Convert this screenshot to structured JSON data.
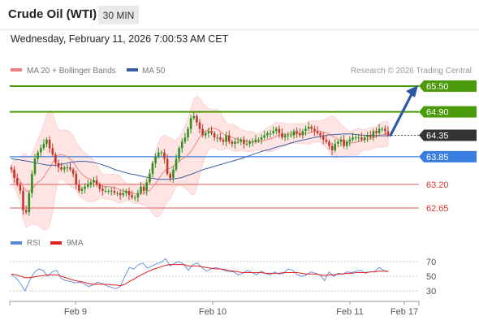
{
  "header": {
    "instrument": "Crude Oil (WTI)",
    "timeframe": "30 MIN",
    "datetime": "Wednesday, February 11, 2026 7:00:53 AM CET"
  },
  "legend": {
    "ma20_label": "MA 20 + Bollinger Bands",
    "ma50_label": "MA 50",
    "copyright": "Research © 2026 Trading Central",
    "ma20_color": "#f08080",
    "ma50_color": "#3a5f9e",
    "band_color": "#ffe0e0"
  },
  "rsi_legend": {
    "rsi_label": "RSI",
    "ma9_label": "9MA",
    "rsi_color": "#5b85d8",
    "ma9_color": "#e02020"
  },
  "colors": {
    "resistance": "#4a9a0c",
    "pivot": "#3a7de0",
    "support": "#e06060",
    "current": "#333333",
    "arrow": "#2c5aa0",
    "candle_up": "#2f8f1f",
    "candle_down": "#c0392b"
  },
  "chart_data": [
    {
      "type": "candlestick",
      "title": "Crude Oil (WTI) 30 MIN",
      "x_labels": [
        "Feb 9",
        "Feb 10",
        "Feb 11",
        "Feb 17"
      ],
      "ylim": [
        62.4,
        65.7
      ],
      "levels": [
        {
          "label": "65.50",
          "value": 65.5,
          "kind": "resistance"
        },
        {
          "label": "64.90",
          "value": 64.9,
          "kind": "resistance"
        },
        {
          "label": "64.35",
          "value": 64.35,
          "kind": "current"
        },
        {
          "label": "63.85",
          "value": 63.85,
          "kind": "pivot"
        },
        {
          "label": "63.20",
          "value": 63.2,
          "kind": "support"
        },
        {
          "label": "62.65",
          "value": 62.65,
          "kind": "support"
        }
      ],
      "close_series": [
        63.55,
        63.35,
        63.2,
        63.05,
        62.6,
        62.55,
        63.0,
        63.45,
        63.8,
        63.95,
        64.05,
        64.15,
        64.25,
        64.05,
        63.9,
        63.7,
        63.6,
        63.55,
        63.6,
        63.6,
        63.55,
        63.45,
        63.2,
        63.05,
        63.1,
        63.15,
        63.2,
        63.25,
        63.3,
        63.2,
        63.1,
        63.05,
        63.05,
        63.05,
        63.05,
        63.0,
        63.0,
        62.95,
        63.0,
        63.05,
        62.95,
        62.9,
        62.9,
        63.0,
        63.15,
        63.05,
        63.25,
        63.45,
        63.7,
        63.85,
        63.95,
        63.95,
        63.8,
        63.45,
        63.35,
        63.55,
        63.8,
        64.05,
        64.2,
        64.3,
        64.5,
        64.75,
        64.8,
        64.65,
        64.5,
        64.35,
        64.4,
        64.45,
        64.4,
        64.3,
        64.3,
        64.25,
        64.2,
        64.35,
        64.2,
        64.15,
        64.2,
        64.2,
        64.25,
        64.15,
        64.15,
        64.2,
        64.2,
        64.25,
        64.25,
        64.3,
        64.35,
        64.4,
        64.4,
        64.45,
        64.5,
        64.4,
        64.3,
        64.35,
        64.35,
        64.35,
        64.45,
        64.4,
        64.35,
        64.45,
        64.5,
        64.55,
        64.5,
        64.45,
        64.4,
        64.35,
        64.25,
        64.2,
        64.1,
        64.0,
        64.15,
        64.2,
        64.25,
        64.1,
        64.2,
        64.25,
        64.3,
        64.3,
        64.3,
        64.25,
        64.3,
        64.35,
        64.3,
        64.45,
        64.4,
        64.5,
        64.5,
        64.45,
        64.35
      ],
      "ma50_series": [
        63.8,
        63.78,
        63.75,
        63.72,
        63.68,
        63.65,
        63.65,
        63.68,
        63.72,
        63.74,
        63.74,
        63.72,
        63.68,
        63.62,
        63.55,
        63.5,
        63.45,
        63.42,
        63.38,
        63.35,
        63.32,
        63.32,
        63.33,
        63.36,
        63.42,
        63.48,
        63.55,
        63.6,
        63.65,
        63.7,
        63.75,
        63.8,
        63.86,
        63.92,
        63.98,
        64.02,
        64.08,
        64.12,
        64.18,
        64.22,
        64.26,
        64.3,
        64.33,
        64.36,
        64.37,
        64.38,
        64.38,
        64.36,
        64.35,
        64.35,
        64.34,
        64.34
      ],
      "rsi": {
        "ylim": [
          20,
          80
        ],
        "ticks": [
          30,
          50,
          70
        ],
        "rsi_series": [
          52,
          48,
          40,
          30,
          44,
          55,
          60,
          58,
          50,
          56,
          58,
          47,
          44,
          43,
          41,
          42,
          40,
          36,
          38,
          42,
          40,
          37,
          35,
          33,
          36,
          50,
          62,
          60,
          66,
          68,
          61,
          64,
          67,
          69,
          74,
          64,
          68,
          70,
          66,
          58,
          66,
          68,
          62,
          57,
          60,
          62,
          60,
          58,
          56,
          56,
          52,
          54,
          58,
          55,
          52,
          57,
          54,
          52,
          56,
          53,
          54,
          60,
          58,
          52,
          50,
          52,
          56,
          54,
          52,
          44,
          56,
          50,
          54,
          53,
          56,
          55,
          57,
          58,
          54,
          56,
          56,
          62,
          58,
          56
        ],
        "ma9_series": [
          53,
          52,
          50,
          48,
          48,
          49,
          50,
          51,
          52,
          52,
          52,
          50,
          48,
          46,
          44,
          43,
          42,
          40,
          39,
          39,
          39,
          39,
          38,
          38,
          37,
          39,
          43,
          46,
          50,
          53,
          56,
          59,
          61,
          63,
          65,
          66,
          66,
          66,
          66,
          64,
          64,
          64,
          63,
          62,
          61,
          60,
          60,
          59,
          58,
          57,
          56,
          55,
          55,
          55,
          55,
          55,
          54,
          54,
          54,
          54,
          55,
          55,
          55,
          55,
          54,
          53,
          53,
          53,
          52,
          51,
          52,
          52,
          53,
          53,
          54,
          54,
          55,
          55,
          55,
          56,
          56,
          57,
          57,
          57
        ]
      }
    }
  ]
}
